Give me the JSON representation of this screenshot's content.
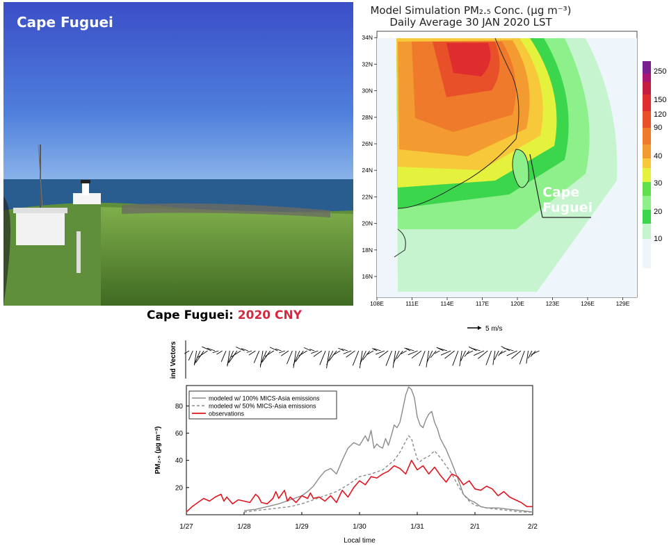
{
  "photo": {
    "title": "Cape Fuguei"
  },
  "map": {
    "title_line1": "Model Simulation PM₂.₅ Conc. (μg m⁻³)",
    "title_line2": "Daily Average 30 JAN 2020 LST",
    "lon_labels": [
      "108E",
      "111E",
      "114E",
      "117E",
      "120E",
      "123E",
      "126E",
      "129E"
    ],
    "lat_labels": [
      "16N",
      "18N",
      "20N",
      "22N",
      "24N",
      "26N",
      "28N",
      "30N",
      "32N",
      "34N"
    ],
    "colorbar_labels": [
      "250",
      "150",
      "120",
      "90",
      "40",
      "30",
      "20",
      "10"
    ],
    "colorbar_colors": [
      "#eef6fb",
      "#c6f4cf",
      "#8ef08a",
      "#60e04a",
      "#3cd64c",
      "#e4f23e",
      "#f7c83a",
      "#f39a31",
      "#ef7a2b",
      "#e8502a",
      "#df2d2f",
      "#c41d40",
      "#a81772",
      "#7a1f90"
    ],
    "callout_line1": "Cape",
    "callout_line2": "Fuguei"
  },
  "chart": {
    "title_prefix": "Cape Fuguei: ",
    "title_highlight": "2020 CNY",
    "wind_ylabel": "Wind Vectors",
    "wind_scale_label": "5 m/s",
    "ylabel": "PM₂.₅ (μg m⁻³)",
    "xlabel": "Local time"
  },
  "chart_data": {
    "type": "line",
    "x_ticks": [
      "1/27",
      "1/28",
      "1/29",
      "1/30",
      "1/31",
      "2/1",
      "2/2"
    ],
    "y_ticks": [
      20,
      40,
      60,
      80
    ],
    "xlim": [
      0,
      6
    ],
    "ylim": [
      0,
      95
    ],
    "legend_position": "top-left",
    "series": [
      {
        "name": "modeled w/ 100% MICS-Asia emissions",
        "color": "#8a8a8a",
        "dash": "none",
        "x": [
          1.0,
          1.2,
          1.4,
          1.6,
          1.8,
          2.0,
          2.1,
          2.2,
          2.3,
          2.4,
          2.5,
          2.6,
          2.7,
          2.8,
          2.9,
          3.0,
          3.1,
          3.15,
          3.2,
          3.25,
          3.3,
          3.35,
          3.4,
          3.45,
          3.5,
          3.55,
          3.6,
          3.65,
          3.7,
          3.75,
          3.8,
          3.85,
          3.9,
          3.95,
          4.0,
          4.05,
          4.1,
          4.15,
          4.2,
          4.25,
          4.3,
          4.35,
          4.4,
          4.5,
          4.6,
          4.7,
          4.8,
          4.9,
          5.0,
          5.1,
          5.2,
          5.4,
          5.6,
          5.8,
          6.0
        ],
        "y": [
          3,
          4,
          6,
          8,
          11,
          14,
          17,
          21,
          27,
          32,
          34,
          30,
          40,
          49,
          53,
          51,
          58,
          54,
          62,
          49,
          52,
          50,
          49,
          56,
          51,
          58,
          66,
          64,
          68,
          78,
          88,
          94,
          92,
          86,
          72,
          66,
          64,
          70,
          74,
          76,
          68,
          63,
          56,
          48,
          38,
          27,
          15,
          11,
          9,
          6,
          5,
          5,
          4,
          3,
          2
        ]
      },
      {
        "name": "modeled w/ 50% MICS-Asia emissions",
        "color": "#8a8a8a",
        "dash": "4,3",
        "x": [
          1.0,
          1.2,
          1.4,
          1.6,
          1.8,
          2.0,
          2.2,
          2.4,
          2.6,
          2.8,
          3.0,
          3.2,
          3.4,
          3.6,
          3.7,
          3.8,
          3.85,
          3.9,
          3.95,
          4.0,
          4.05,
          4.1,
          4.2,
          4.3,
          4.4,
          4.5,
          4.6,
          4.7,
          4.8,
          4.9,
          5.0,
          5.2,
          5.4,
          5.6,
          5.8,
          6.0
        ],
        "y": [
          2,
          3,
          4,
          5,
          6,
          8,
          11,
          14,
          17,
          22,
          28,
          30,
          33,
          40,
          46,
          54,
          58,
          56,
          48,
          41,
          39,
          41,
          43,
          47,
          42,
          36,
          30,
          22,
          15,
          10,
          7,
          5,
          4,
          3,
          2,
          2
        ]
      },
      {
        "name": "observations",
        "color": "#e0141e",
        "dash": "none",
        "x": [
          0.0,
          0.1,
          0.2,
          0.3,
          0.4,
          0.5,
          0.6,
          0.65,
          0.7,
          0.8,
          0.9,
          1.0,
          1.1,
          1.2,
          1.25,
          1.3,
          1.4,
          1.5,
          1.55,
          1.6,
          1.7,
          1.75,
          1.8,
          1.9,
          2.0,
          2.1,
          2.15,
          2.2,
          2.3,
          2.4,
          2.5,
          2.6,
          2.7,
          2.8,
          2.9,
          3.0,
          3.1,
          3.2,
          3.3,
          3.4,
          3.5,
          3.6,
          3.7,
          3.8,
          3.9,
          4.0,
          4.1,
          4.2,
          4.3,
          4.4,
          4.5,
          4.6,
          4.7,
          4.8,
          4.9,
          5.0,
          5.1,
          5.2,
          5.3,
          5.4,
          5.5,
          5.6,
          5.7,
          5.8,
          5.9,
          6.0
        ],
        "y": [
          2,
          6,
          9,
          12,
          10,
          13,
          15,
          10,
          13,
          8,
          11,
          10,
          9,
          15,
          13,
          9,
          8,
          12,
          17,
          12,
          18,
          10,
          13,
          9,
          14,
          12,
          16,
          12,
          13,
          10,
          14,
          9,
          18,
          13,
          20,
          25,
          22,
          28,
          27,
          30,
          32,
          36,
          34,
          30,
          40,
          33,
          36,
          30,
          35,
          29,
          24,
          30,
          28,
          22,
          25,
          19,
          18,
          21,
          19,
          14,
          17,
          13,
          11,
          9,
          6,
          6
        ]
      }
    ]
  }
}
